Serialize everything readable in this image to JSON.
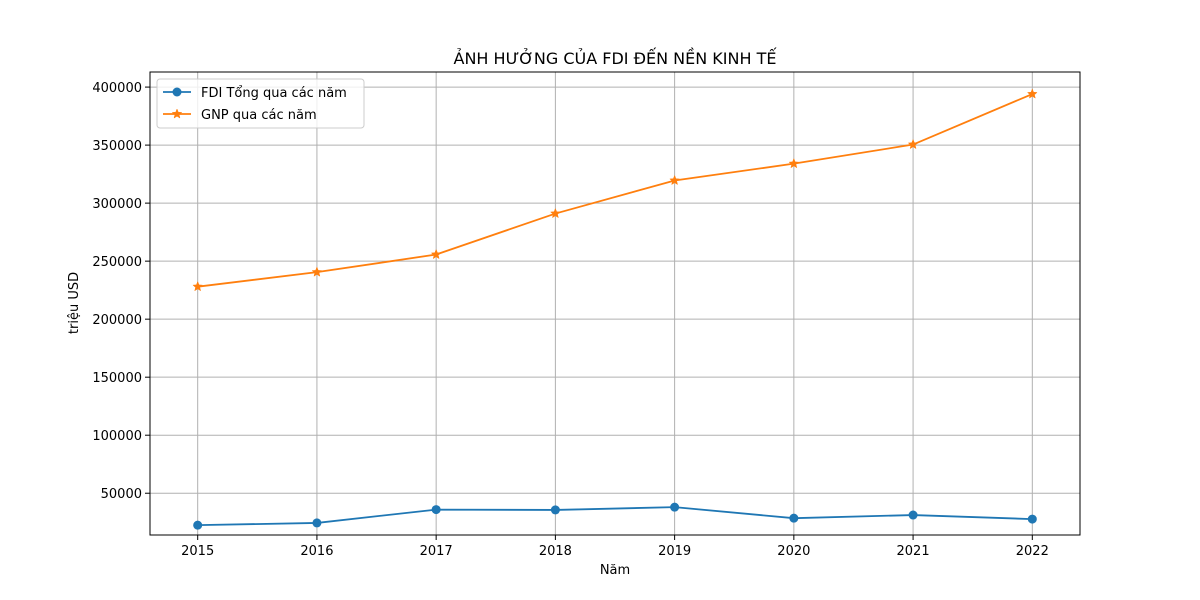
{
  "chart_data": {
    "type": "line",
    "title": "ẢNH HƯỞNG CỦA FDI ĐẾN NỀN KINH TẾ",
    "xlabel": "Năm",
    "ylabel": "triệu USD",
    "x": [
      2015,
      2016,
      2017,
      2018,
      2019,
      2020,
      2021,
      2022
    ],
    "x_tick_labels": [
      "2015",
      "2016",
      "2017",
      "2018",
      "2019",
      "2020",
      "2021",
      "2022"
    ],
    "y_ticks": [
      50000,
      100000,
      150000,
      200000,
      250000,
      300000,
      350000,
      400000
    ],
    "y_tick_labels": [
      "50000",
      "100000",
      "150000",
      "200000",
      "250000",
      "300000",
      "350000",
      "400000"
    ],
    "xlim": [
      2014.6,
      2022.4
    ],
    "ylim": [
      14000,
      413000
    ],
    "grid": true,
    "legend_position": "top-left",
    "series": [
      {
        "name": "FDI Tổng qua các năm",
        "marker": "circle",
        "color": "#1f77b4",
        "values": [
          22500,
          24400,
          35900,
          35600,
          38000,
          28500,
          31200,
          27700
        ]
      },
      {
        "name": "GNP qua các năm",
        "marker": "star",
        "color": "#ff7f0e",
        "values": [
          228000,
          240500,
          255700,
          291000,
          319500,
          334000,
          350500,
          394000
        ]
      }
    ]
  }
}
